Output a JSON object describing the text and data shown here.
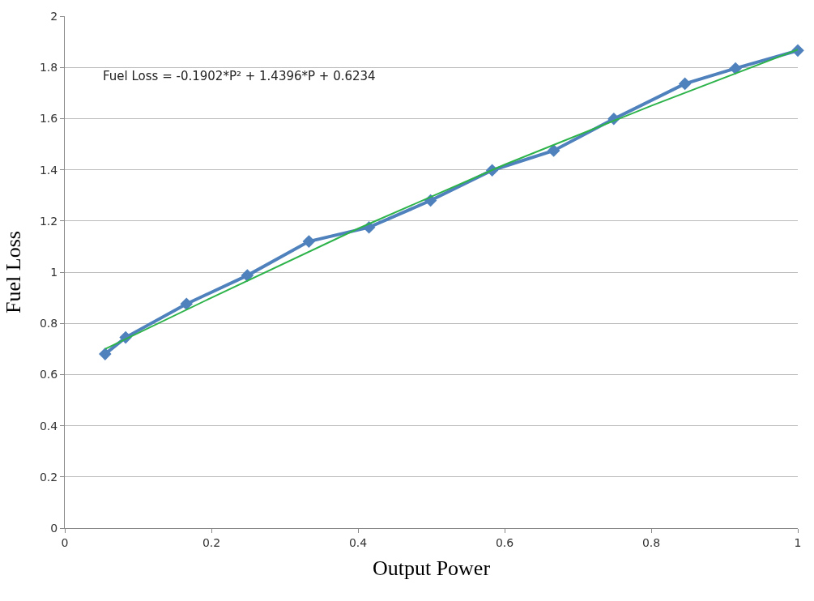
{
  "chart_data": {
    "type": "line",
    "xlabel": "Output Power",
    "ylabel": "Fuel Loss",
    "annotations": [
      "Fuel Loss = -0.1902*P² + 1.4396*P + 0.6234"
    ],
    "series": [
      {
        "color": "#4f81bd",
        "marker": "diamond",
        "x": [
          0.055,
          0.083,
          0.166,
          0.249,
          0.333,
          0.415,
          0.499,
          0.583,
          0.667,
          0.749,
          0.846,
          0.915,
          1.0
        ],
        "values": [
          0.68,
          0.745,
          0.876,
          0.987,
          1.12,
          1.175,
          1.28,
          1.398,
          1.475,
          1.599,
          1.736,
          1.796,
          1.866
        ]
      },
      {
        "color": "#2db34a",
        "marker": "none",
        "x": [
          0.055,
          0.2,
          0.4,
          0.6,
          0.8,
          1.0
        ],
        "values": [
          0.7,
          0.9,
          1.17,
          1.42,
          1.65,
          1.87
        ]
      }
    ],
    "xlim": [
      0,
      1
    ],
    "xticks": [
      0,
      0.2,
      0.4,
      0.6,
      0.8,
      1
    ],
    "ylim": [
      0,
      2
    ],
    "yticks": [
      0,
      0.2,
      0.4,
      0.6,
      0.8,
      1,
      1.2,
      1.4,
      1.6,
      1.8,
      2
    ],
    "grid": "y"
  }
}
